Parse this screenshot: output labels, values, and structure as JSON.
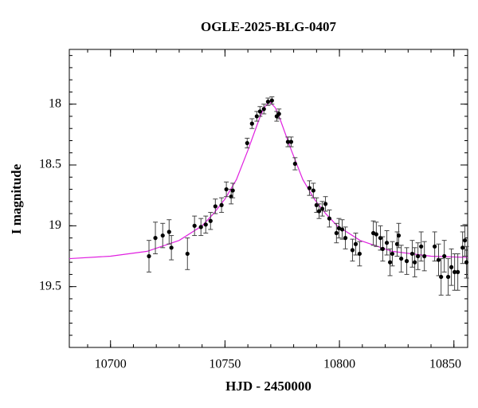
{
  "chart_data": {
    "type": "scatter",
    "title": "OGLE-2025-BLG-0407",
    "x_label": "HJD - 2450000",
    "y_label": "I magnitude",
    "xlim": [
      10682,
      10856
    ],
    "xticks": [
      10700,
      10750,
      10800,
      10850
    ],
    "xminor": 10,
    "ylim": [
      20.0,
      17.55
    ],
    "yticks": [
      18,
      18.5,
      19,
      19.5
    ],
    "yminor": 0.1,
    "series": [
      {
        "type": "scatter",
        "color": "#000000",
        "x": [
          10716.8,
          10719.6,
          10722.8,
          10725.6,
          10726.6,
          10733.6,
          10736.7,
          10739.5,
          10741.6,
          10743.7,
          10745.8,
          10748.5,
          10750.6,
          10752.7,
          10753.4,
          10759.7,
          10761.8,
          10763.9,
          10765.3,
          10767.0,
          10768.8,
          10770.5,
          10772.6,
          10773.6,
          10777.5,
          10778.9,
          10780.6,
          10786.9,
          10788.6,
          10790.0,
          10791.1,
          10792.5,
          10793.9,
          10795.6,
          10798.7,
          10799.8,
          10801.2,
          10802.6,
          10805.7,
          10807.1,
          10808.8,
          10814.8,
          10816.1,
          10817.9,
          10818.9,
          10820.7,
          10822.1,
          10823.1,
          10825.2,
          10825.9,
          10827.0,
          10829.4,
          10831.8,
          10832.9,
          10834.3,
          10835.7,
          10837.1,
          10841.6,
          10843.3,
          10844.4,
          10845.8,
          10847.5,
          10848.9,
          10850.3,
          10851.7,
          10853.8,
          10854.8,
          10855.5
        ],
        "values": [
          19.25,
          19.1,
          19.08,
          19.05,
          19.18,
          19.23,
          19.0,
          19.01,
          18.99,
          18.96,
          18.84,
          18.83,
          18.7,
          18.76,
          18.71,
          18.32,
          18.16,
          18.1,
          18.06,
          18.04,
          17.98,
          17.97,
          18.1,
          18.08,
          18.31,
          18.31,
          18.49,
          18.69,
          18.71,
          18.83,
          18.88,
          18.86,
          18.82,
          18.94,
          19.06,
          19.02,
          19.03,
          19.1,
          19.2,
          19.15,
          19.23,
          19.06,
          19.07,
          19.1,
          19.19,
          19.14,
          19.3,
          19.23,
          19.15,
          19.08,
          19.27,
          19.29,
          19.23,
          19.3,
          19.25,
          19.17,
          19.25,
          19.17,
          19.28,
          19.42,
          19.25,
          19.42,
          19.34,
          19.38,
          19.38,
          19.18,
          19.12,
          19.3
        ],
        "errors": [
          0.13,
          0.13,
          0.1,
          0.1,
          0.1,
          0.13,
          0.08,
          0.07,
          0.07,
          0.07,
          0.06,
          0.06,
          0.06,
          0.06,
          0.06,
          0.04,
          0.04,
          0.04,
          0.04,
          0.04,
          0.03,
          0.03,
          0.04,
          0.04,
          0.04,
          0.04,
          0.05,
          0.06,
          0.06,
          0.06,
          0.06,
          0.06,
          0.06,
          0.07,
          0.08,
          0.08,
          0.08,
          0.09,
          0.09,
          0.09,
          0.1,
          0.1,
          0.1,
          0.1,
          0.1,
          0.1,
          0.11,
          0.1,
          0.1,
          0.1,
          0.11,
          0.11,
          0.11,
          0.12,
          0.11,
          0.12,
          0.12,
          0.12,
          0.13,
          0.15,
          0.13,
          0.15,
          0.15,
          0.15,
          0.15,
          0.13,
          0.13,
          0.13
        ]
      },
      {
        "type": "line",
        "color": "#e020e0",
        "x": [
          10682,
          10700,
          10716,
          10730,
          10740,
          10745,
          10750,
          10755,
          10760,
          10762.5,
          10765,
          10767,
          10769.5,
          10772,
          10774,
          10776.5,
          10779,
          10784,
          10789,
          10794,
          10799,
          10809,
          10823,
          10840,
          10856
        ],
        "values": [
          19.27,
          19.25,
          19.21,
          19.12,
          19.0,
          18.9,
          18.78,
          18.62,
          18.38,
          18.25,
          18.12,
          18.03,
          17.98,
          18.03,
          18.12,
          18.25,
          18.38,
          18.62,
          18.78,
          18.9,
          19.0,
          19.12,
          19.21,
          19.25,
          19.26
        ]
      }
    ]
  }
}
